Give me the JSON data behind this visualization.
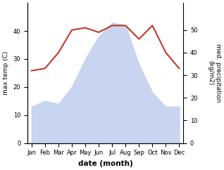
{
  "months": [
    "Jan",
    "Feb",
    "Mar",
    "Apr",
    "May",
    "Jun",
    "Jul",
    "Aug",
    "Sep",
    "Oct",
    "Nov",
    "Dec"
  ],
  "temp": [
    13,
    15,
    14,
    20,
    30,
    38,
    43,
    42,
    28,
    18,
    13,
    13
  ],
  "precip": [
    32,
    33,
    40,
    50,
    51,
    49,
    52,
    52,
    46,
    52,
    40,
    33
  ],
  "precip_color": "#c0392b",
  "temp_fill_color": "#c8d4f0",
  "ylabel_left": "max temp (C)",
  "ylabel_right": "med. precipitation\n(kg/m2)",
  "xlabel": "date (month)",
  "ylim_left": [
    0,
    50
  ],
  "ylim_right": [
    0,
    62
  ],
  "yticks_left": [
    0,
    10,
    20,
    30,
    40
  ],
  "yticks_right": [
    0,
    10,
    20,
    30,
    40,
    50
  ],
  "axis_fontsize": 6.5,
  "tick_fontsize": 6.0,
  "xlabel_fontsize": 7.5,
  "linewidth": 1.5
}
